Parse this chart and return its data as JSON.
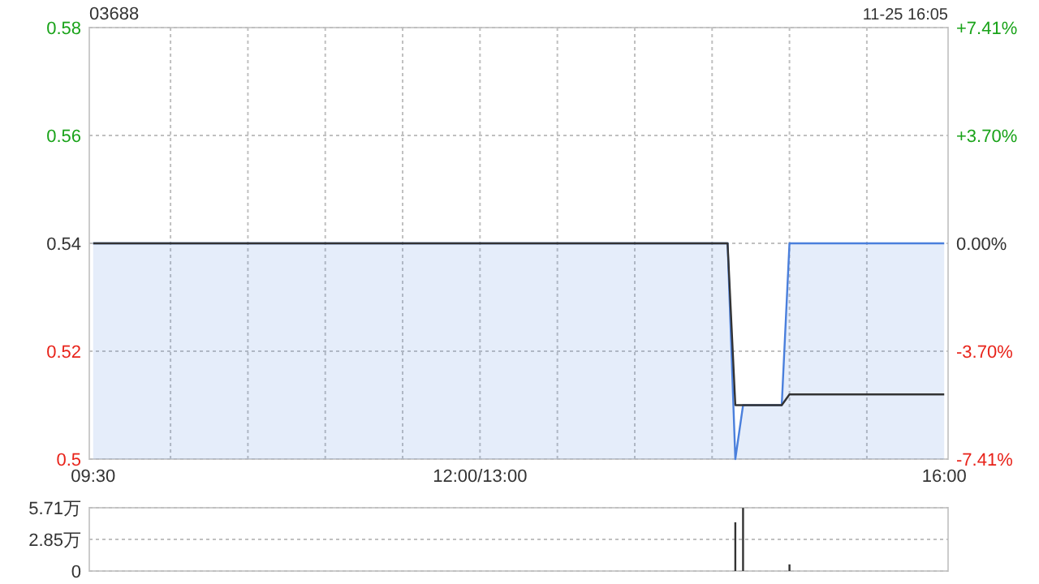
{
  "chart_data": [
    {
      "type": "line",
      "title": "03688",
      "annotations": [
        "11-25 16:05"
      ],
      "categories": [
        "09:30",
        null,
        null,
        null,
        null,
        null,
        null,
        null,
        null,
        null,
        null,
        null,
        null,
        null,
        null,
        null,
        null,
        null,
        null,
        null,
        null,
        null,
        null,
        null,
        null,
        null,
        null,
        null,
        null,
        null,
        null,
        null,
        null,
        null,
        null,
        null,
        null,
        null,
        null,
        null,
        null,
        null,
        null,
        null,
        null,
        null,
        null,
        null,
        null,
        null,
        "12:00/13:00",
        null,
        null,
        null,
        null,
        null,
        null,
        null,
        null,
        null,
        null,
        null,
        null,
        null,
        null,
        null,
        null,
        null,
        null,
        null,
        null,
        null,
        null,
        null,
        null,
        null,
        null,
        null,
        null,
        null,
        null,
        null,
        null,
        null,
        null,
        null,
        null,
        null,
        null,
        null,
        null,
        null,
        null,
        null,
        null,
        null,
        null,
        null,
        null,
        null,
        null,
        null,
        null,
        null,
        null,
        null,
        null,
        null,
        null,
        null,
        "16:00"
      ],
      "ylim": [
        0.5,
        0.58
      ],
      "yticks": [
        0.5,
        0.52,
        0.54,
        0.56,
        0.58
      ],
      "y2lim": [
        -7.41,
        7.41
      ],
      "y2ticks": [
        {
          "value": -7.41,
          "label": "-7.41%"
        },
        {
          "value": -3.7,
          "label": "-3.70%"
        },
        {
          "value": 0,
          "label": "0.00%"
        },
        {
          "value": 3.7,
          "label": "+3.70%"
        },
        {
          "value": 7.41,
          "label": "+7.41%"
        }
      ],
      "grid": true,
      "series": [
        {
          "type": "area",
          "color": "#4a7fdc",
          "values": [
            0.54,
            0.54,
            0.54,
            0.54,
            0.54,
            0.54,
            0.54,
            0.54,
            0.54,
            0.54,
            0.54,
            0.54,
            0.54,
            0.54,
            0.54,
            0.54,
            0.54,
            0.54,
            0.54,
            0.54,
            0.54,
            0.54,
            0.54,
            0.54,
            0.54,
            0.54,
            0.54,
            0.54,
            0.54,
            0.54,
            0.54,
            0.54,
            0.54,
            0.54,
            0.54,
            0.54,
            0.54,
            0.54,
            0.54,
            0.54,
            0.54,
            0.54,
            0.54,
            0.54,
            0.54,
            0.54,
            0.54,
            0.54,
            0.54,
            0.54,
            0.54,
            0.54,
            0.54,
            0.54,
            0.54,
            0.54,
            0.54,
            0.54,
            0.54,
            0.54,
            0.54,
            0.54,
            0.54,
            0.54,
            0.54,
            0.54,
            0.54,
            0.54,
            0.54,
            0.54,
            0.54,
            0.54,
            0.54,
            0.54,
            0.54,
            0.54,
            0.54,
            0.54,
            0.54,
            0.54,
            0.54,
            0.54,
            0.54,
            0.5,
            0.51,
            0.51,
            0.51,
            0.51,
            0.51,
            0.51,
            0.54,
            0.54,
            0.54,
            0.54,
            0.54,
            0.54,
            0.54,
            0.54,
            0.54,
            0.54,
            0.54,
            0.54,
            0.54,
            0.54,
            0.54,
            0.54,
            0.54,
            0.54,
            0.54,
            0.54,
            0.54
          ]
        },
        {
          "type": "line",
          "color": "#333333",
          "values": [
            0.54,
            0.54,
            0.54,
            0.54,
            0.54,
            0.54,
            0.54,
            0.54,
            0.54,
            0.54,
            0.54,
            0.54,
            0.54,
            0.54,
            0.54,
            0.54,
            0.54,
            0.54,
            0.54,
            0.54,
            0.54,
            0.54,
            0.54,
            0.54,
            0.54,
            0.54,
            0.54,
            0.54,
            0.54,
            0.54,
            0.54,
            0.54,
            0.54,
            0.54,
            0.54,
            0.54,
            0.54,
            0.54,
            0.54,
            0.54,
            0.54,
            0.54,
            0.54,
            0.54,
            0.54,
            0.54,
            0.54,
            0.54,
            0.54,
            0.54,
            0.54,
            0.54,
            0.54,
            0.54,
            0.54,
            0.54,
            0.54,
            0.54,
            0.54,
            0.54,
            0.54,
            0.54,
            0.54,
            0.54,
            0.54,
            0.54,
            0.54,
            0.54,
            0.54,
            0.54,
            0.54,
            0.54,
            0.54,
            0.54,
            0.54,
            0.54,
            0.54,
            0.54,
            0.54,
            0.54,
            0.54,
            0.54,
            0.54,
            0.51,
            0.51,
            0.51,
            0.51,
            0.51,
            0.51,
            0.51,
            0.512,
            0.512,
            0.512,
            0.512,
            0.512,
            0.512,
            0.512,
            0.512,
            0.512,
            0.512,
            0.512,
            0.512,
            0.512,
            0.512,
            0.512,
            0.512,
            0.512,
            0.512,
            0.512,
            0.512,
            0.512
          ]
        }
      ]
    },
    {
      "type": "bar",
      "categories": [
        null,
        null,
        null,
        null,
        null,
        null,
        null,
        null,
        null,
        null,
        null,
        null,
        null,
        null,
        null,
        null,
        null,
        null,
        null,
        null,
        null,
        null,
        null,
        null,
        null,
        null,
        null,
        null,
        null,
        null,
        null,
        null,
        null,
        null,
        null,
        null,
        null,
        null,
        null,
        null,
        null,
        null,
        null,
        null,
        null,
        null,
        null,
        null,
        null,
        null,
        null,
        null,
        null,
        null,
        null,
        null,
        null,
        null,
        null,
        null,
        null,
        null,
        null,
        null,
        null,
        null,
        null,
        null,
        null,
        null,
        null,
        null,
        null,
        null,
        null,
        null,
        null,
        null,
        null,
        null,
        null,
        null,
        null,
        null,
        null,
        null,
        null,
        null,
        null,
        null,
        null,
        null,
        null,
        null,
        null,
        null,
        null,
        null,
        null,
        null,
        null,
        null,
        null,
        null,
        null,
        null,
        null,
        null,
        null,
        null,
        null
      ],
      "values": [
        null,
        null,
        null,
        null,
        null,
        null,
        null,
        null,
        null,
        null,
        null,
        null,
        null,
        null,
        null,
        null,
        null,
        null,
        null,
        null,
        null,
        null,
        null,
        null,
        null,
        null,
        null,
        null,
        null,
        null,
        null,
        null,
        null,
        null,
        null,
        null,
        null,
        null,
        null,
        null,
        null,
        null,
        null,
        null,
        null,
        null,
        null,
        null,
        null,
        null,
        null,
        null,
        null,
        null,
        null,
        null,
        null,
        null,
        null,
        null,
        null,
        null,
        null,
        null,
        null,
        null,
        null,
        null,
        null,
        null,
        null,
        null,
        null,
        null,
        null,
        null,
        null,
        null,
        null,
        null,
        null,
        null,
        null,
        4.4,
        5.7,
        null,
        null,
        null,
        null,
        null,
        0.6,
        null,
        null,
        null,
        null,
        null,
        null,
        null,
        null,
        null,
        null,
        null,
        null,
        null,
        null,
        null,
        null,
        null,
        null,
        null,
        null
      ],
      "color": "#333333",
      "ylim": [
        0,
        5.71
      ],
      "yticks": [
        {
          "value": 0,
          "label": "0"
        },
        {
          "value": 2.85,
          "label": "2.85万"
        },
        {
          "value": 5.71,
          "label": "5.71万"
        }
      ],
      "grid": "y",
      "tick_labels": "y"
    }
  ]
}
